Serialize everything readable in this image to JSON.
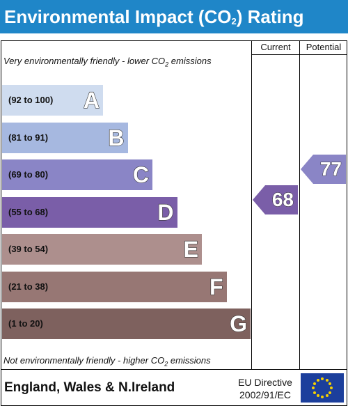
{
  "title": {
    "main": "Environmental Impact (CO",
    "sub": "2",
    "tail": ") Rating"
  },
  "columns": {
    "current": "Current",
    "potential": "Potential"
  },
  "top_note": {
    "pre": "Very environmentally friendly - lower CO",
    "sub": "2",
    "post": " emissions"
  },
  "bottom_note": {
    "pre": "Not environmentally friendly - higher CO",
    "sub": "2",
    "post": " emissions"
  },
  "footer": {
    "country": "England, Wales & N.Ireland",
    "eu_line1": "EU Directive",
    "eu_line2": "2002/91/EC"
  },
  "chart_data": {
    "type": "bar",
    "bands": [
      {
        "letter": "A",
        "range": "(92 to 100)",
        "min": 92,
        "max": 100,
        "color": "#cfdcef"
      },
      {
        "letter": "B",
        "range": "(81 to 91)",
        "min": 81,
        "max": 91,
        "color": "#a6b8e0"
      },
      {
        "letter": "C",
        "range": "(69 to 80)",
        "min": 69,
        "max": 80,
        "color": "#8a85c6"
      },
      {
        "letter": "D",
        "range": "(55 to 68)",
        "min": 55,
        "max": 68,
        "color": "#7a5ea8"
      },
      {
        "letter": "E",
        "range": "(39 to 54)",
        "min": 39,
        "max": 54,
        "color": "#ad8f8d"
      },
      {
        "letter": "F",
        "range": "(21 to 38)",
        "min": 21,
        "max": 38,
        "color": "#977774"
      },
      {
        "letter": "G",
        "range": "(1 to 20)",
        "min": 1,
        "max": 20,
        "color": "#7e615e"
      }
    ],
    "current": {
      "value": 68,
      "band": "D",
      "color": "#7a5ea8"
    },
    "potential": {
      "value": 77,
      "band": "C",
      "color": "#8a85c6"
    }
  }
}
